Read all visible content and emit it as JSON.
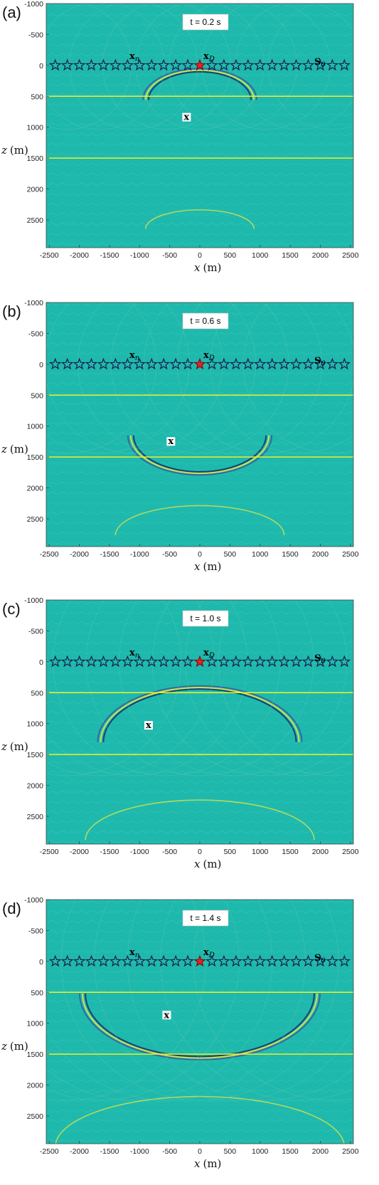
{
  "panels": [
    {
      "label": "(a)",
      "time_label": "t = 0.2 s"
    },
    {
      "label": "(b)",
      "time_label": "t = 0.6 s"
    },
    {
      "label": "(c)",
      "time_label": "t = 1.0 s"
    },
    {
      "label": "(d)",
      "time_label": "t = 1.4 s"
    }
  ],
  "x_ticks": [
    "-2500",
    "-2000",
    "-1500",
    "-1000",
    "-500",
    "0",
    "500",
    "1000",
    "1500",
    "2000",
    "2500"
  ],
  "z_ticks": [
    "-1000",
    "-500",
    "0",
    "500",
    "1000",
    "1500",
    "2000",
    "2500"
  ],
  "x_axis": {
    "var": "x",
    "unit": "(m)"
  },
  "z_axis": {
    "var": "z",
    "unit": "(m)"
  },
  "annotations": {
    "xn": "x",
    "xn_sub": "n",
    "xd": "x",
    "xd_sub": "D",
    "s0": "S",
    "s0_sub": "0",
    "x": "x"
  },
  "colors": {
    "background": "#1fb8ad",
    "layer_line": "#f2ef28",
    "star_open": "#1b1b4a",
    "star_source": "#e8232a"
  },
  "model": {
    "layer_depths_m": [
      500,
      1500
    ],
    "source_x_m": 0,
    "receiver_depth_m": 0,
    "receiver_count": 25
  },
  "x_marker_positions": [
    {
      "x_m": -220,
      "z_m": 850
    },
    {
      "x_m": -480,
      "z_m": 1260
    },
    {
      "x_m": -850,
      "z_m": 1040
    },
    {
      "x_m": -550,
      "z_m": 880
    }
  ],
  "wavefronts": [
    {
      "center_x_m": 0,
      "depth_m": 560,
      "radius_m": 850,
      "kind": "down"
    },
    {
      "center_x_m": 0,
      "depth_m": 1150,
      "radius_m": 1100,
      "kind": "up"
    },
    {
      "center_x_m": 0,
      "depth_m": 1300,
      "radius_m": 1600,
      "kind": "down"
    },
    {
      "center_x_m": 0,
      "depth_m": 520,
      "radius_m": 1900,
      "kind": "up"
    }
  ]
}
